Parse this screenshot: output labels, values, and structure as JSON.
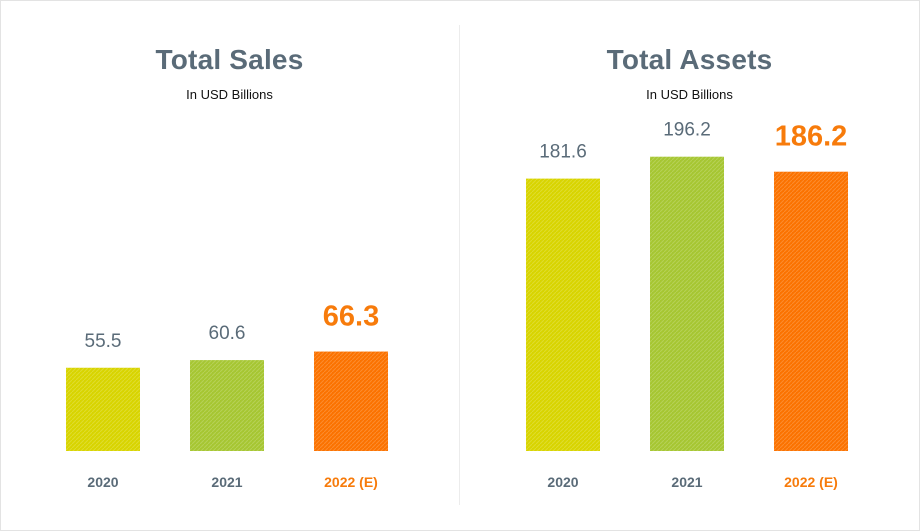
{
  "chart_data": [
    {
      "type": "bar",
      "title": "Total Sales",
      "subtitle": "In USD Billions",
      "categories": [
        "2020",
        "2021",
        "2022 (E)"
      ],
      "values": [
        55.5,
        60.6,
        66.3
      ],
      "value_labels": [
        "55.5",
        "60.6",
        "66.3"
      ],
      "ylim": [
        0,
        200
      ],
      "highlight_index": 2,
      "colors": [
        "#d8d400",
        "#a6c632",
        "#fb7200"
      ]
    },
    {
      "type": "bar",
      "title": "Total Assets",
      "subtitle": "In USD Billions",
      "categories": [
        "2020",
        "2021",
        "2022 (E)"
      ],
      "values": [
        181.6,
        196.2,
        186.2
      ],
      "value_labels": [
        "181.6",
        "196.2",
        "186.2"
      ],
      "ylim": [
        0,
        200
      ],
      "highlight_index": 2,
      "colors": [
        "#d8d400",
        "#a6c632",
        "#fb7200"
      ]
    }
  ]
}
